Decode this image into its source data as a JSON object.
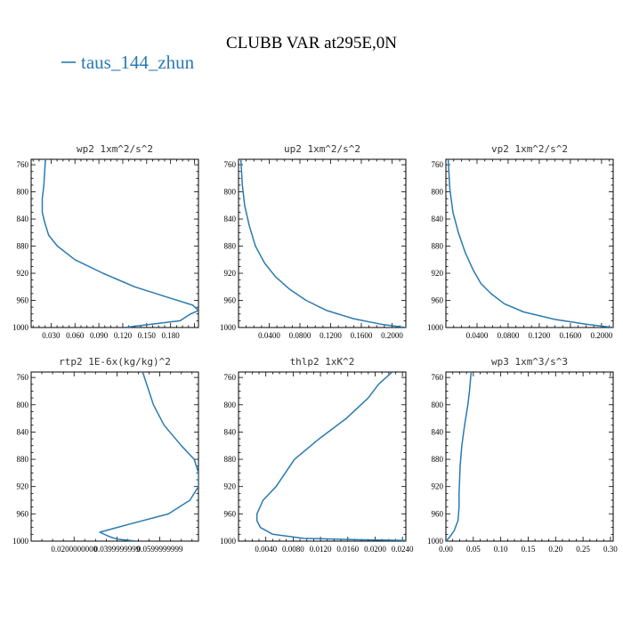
{
  "figure": {
    "title": "CLUBB VAR at295E,0N",
    "legend": {
      "label": "taus_144_zhun",
      "color": "#2a7ab0"
    }
  },
  "chart_data": [
    {
      "type": "line",
      "title": "wp2  1xm^2/s^2",
      "xlim": [
        0.005,
        0.215
      ],
      "ylim": [
        1000,
        752
      ],
      "y_inverted": true,
      "xticks": [
        0.03,
        0.06,
        0.09,
        0.12,
        0.15,
        0.18
      ],
      "xticklabels": [
        "0.030",
        "0.060",
        "0.090",
        "0.120",
        "0.150",
        "0.180"
      ],
      "yticks": [
        760,
        800,
        840,
        880,
        920,
        960,
        1000
      ],
      "yticklabels": [
        "760",
        "800",
        "840",
        "880",
        "920",
        "960",
        "1000"
      ],
      "series": [
        {
          "name": "taus_144_zhun",
          "x": [
            0.122,
            0.192,
            0.205,
            0.215,
            0.208,
            0.175,
            0.135,
            0.095,
            0.06,
            0.038,
            0.027,
            0.022,
            0.019,
            0.019,
            0.021,
            0.022,
            0.023
          ],
          "y": [
            1000,
            990,
            980,
            975,
            967,
            955,
            940,
            920,
            900,
            880,
            864,
            845,
            830,
            810,
            790,
            770,
            752
          ]
        }
      ]
    },
    {
      "type": "line",
      "title": "up2  1xm^2/s^2",
      "xlim": [
        0.0,
        0.218
      ],
      "ylim": [
        1000,
        752
      ],
      "y_inverted": true,
      "xticks": [
        0.04,
        0.08,
        0.12,
        0.16,
        0.2
      ],
      "xticklabels": [
        "0.0400",
        "0.0800",
        "0.1200",
        "0.1600",
        "0.2000"
      ],
      "yticks": [
        760,
        800,
        840,
        880,
        920,
        960,
        1000
      ],
      "yticklabels": [
        "760",
        "800",
        "840",
        "880",
        "920",
        "960",
        "1000"
      ],
      "series": [
        {
          "name": "taus_144_zhun",
          "x": [
            0.218,
            0.185,
            0.15,
            0.115,
            0.088,
            0.066,
            0.048,
            0.034,
            0.022,
            0.014,
            0.008,
            0.005,
            0.003
          ],
          "y": [
            1000,
            995,
            987,
            975,
            960,
            943,
            925,
            905,
            880,
            850,
            820,
            790,
            752
          ]
        }
      ]
    },
    {
      "type": "line",
      "title": "vp2  1xm^2/s^2",
      "xlim": [
        0.0,
        0.215
      ],
      "ylim": [
        1000,
        752
      ],
      "y_inverted": true,
      "xticks": [
        0.04,
        0.08,
        0.12,
        0.16,
        0.2
      ],
      "xticklabels": [
        "0.0400",
        "0.0800",
        "0.1200",
        "0.1600",
        "0.2000"
      ],
      "yticks": [
        760,
        800,
        840,
        880,
        920,
        960,
        1000
      ],
      "yticklabels": [
        "760",
        "800",
        "840",
        "880",
        "920",
        "960",
        "1000"
      ],
      "series": [
        {
          "name": "taus_144_zhun",
          "x": [
            0.215,
            0.18,
            0.14,
            0.1,
            0.075,
            0.058,
            0.045,
            0.035,
            0.025,
            0.016,
            0.009,
            0.005,
            0.003
          ],
          "y": [
            1000,
            995,
            988,
            977,
            965,
            950,
            935,
            915,
            890,
            860,
            830,
            795,
            752
          ]
        }
      ]
    },
    {
      "type": "line",
      "title": "rtp2  1E-6x(kg/kg)^2",
      "xlim": [
        0.0,
        0.078
      ],
      "ylim": [
        1000,
        752
      ],
      "y_inverted": true,
      "xticks": [
        0.02,
        0.04,
        0.06
      ],
      "xticklabels": [
        "0.0200000000",
        "0.0399999999",
        "0.0599999999"
      ],
      "yticks": [
        760,
        800,
        840,
        880,
        920,
        960,
        1000
      ],
      "yticklabels": [
        "760",
        "800",
        "840",
        "880",
        "920",
        "960",
        "1000"
      ],
      "series": [
        {
          "name": "taus_144_zhun",
          "x": [
            0.049,
            0.04,
            0.037,
            0.032,
            0.046,
            0.064,
            0.074,
            0.078,
            0.078,
            0.076,
            0.07,
            0.062,
            0.057,
            0.052
          ],
          "y": [
            1000,
            997,
            994,
            987,
            975,
            960,
            940,
            920,
            900,
            880,
            860,
            830,
            800,
            752
          ]
        }
      ]
    },
    {
      "type": "line",
      "title": "thlp2  1xK^2",
      "xlim": [
        0.0,
        0.0245
      ],
      "ylim": [
        1000,
        752
      ],
      "y_inverted": true,
      "xticks": [
        0.004,
        0.008,
        0.012,
        0.016,
        0.02,
        0.024
      ],
      "xticklabels": [
        "0.0040",
        "0.0080",
        "0.0120",
        "0.0160",
        "0.0200",
        "0.0240"
      ],
      "yticks": [
        760,
        800,
        840,
        880,
        920,
        960,
        1000
      ],
      "yticklabels": [
        "760",
        "800",
        "840",
        "880",
        "920",
        "960",
        "1000"
      ],
      "series": [
        {
          "name": "taus_144_zhun",
          "x": [
            0.0245,
            0.018,
            0.0095,
            0.005,
            0.0032,
            0.0027,
            0.0027,
            0.0036,
            0.0055,
            0.0082,
            0.0118,
            0.0158,
            0.019,
            0.0205,
            0.0225
          ],
          "y": [
            999,
            998,
            996,
            990,
            980,
            970,
            960,
            940,
            920,
            880,
            850,
            820,
            790,
            770,
            752
          ]
        }
      ]
    },
    {
      "type": "line",
      "title": "wp3  1xm^3/s^3",
      "xlim": [
        0.0,
        0.305
      ],
      "ylim": [
        1000,
        752
      ],
      "y_inverted": true,
      "xticks": [
        0.0,
        0.05,
        0.1,
        0.15,
        0.2,
        0.25,
        0.3
      ],
      "xticklabels": [
        "0.00",
        "0.05",
        "0.10",
        "0.15",
        "0.20",
        "0.25",
        "0.30"
      ],
      "yticks": [
        760,
        800,
        840,
        880,
        920,
        960,
        1000
      ],
      "yticklabels": [
        "760",
        "800",
        "840",
        "880",
        "920",
        "960",
        "1000"
      ],
      "series": [
        {
          "name": "taus_144_zhun",
          "x": [
            0.0,
            0.006,
            0.015,
            0.022,
            0.024,
            0.024,
            0.025,
            0.026,
            0.029,
            0.034,
            0.04,
            0.043,
            0.046
          ],
          "y": [
            1000,
            995,
            985,
            970,
            950,
            930,
            910,
            890,
            860,
            830,
            800,
            780,
            752
          ]
        }
      ]
    }
  ]
}
